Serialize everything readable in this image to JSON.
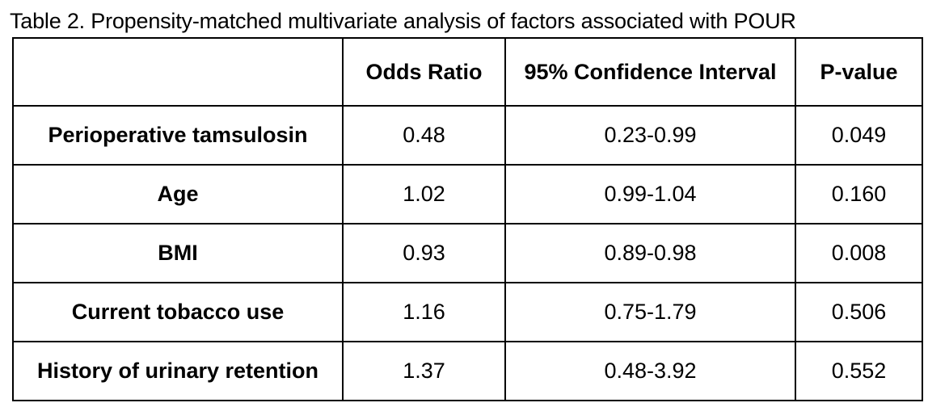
{
  "caption": "Table 2. Propensity-matched multivariate analysis of factors associated with POUR",
  "table": {
    "headers": [
      "",
      "Odds Ratio",
      "95% Confidence Interval",
      "P-value"
    ],
    "rows": [
      {
        "label": "Perioperative tamsulosin",
        "odds_ratio": "0.48",
        "ci": "0.23-0.99",
        "p_value": "0.049"
      },
      {
        "label": "Age",
        "odds_ratio": "1.02",
        "ci": "0.99-1.04",
        "p_value": "0.160"
      },
      {
        "label": "BMI",
        "odds_ratio": "0.93",
        "ci": "0.89-0.98",
        "p_value": "0.008"
      },
      {
        "label": "Current tobacco use",
        "odds_ratio": "1.16",
        "ci": "0.75-1.79",
        "p_value": "0.506"
      },
      {
        "label": "History of urinary retention",
        "odds_ratio": "1.37",
        "ci": "0.48-3.92",
        "p_value": "0.552"
      }
    ]
  }
}
